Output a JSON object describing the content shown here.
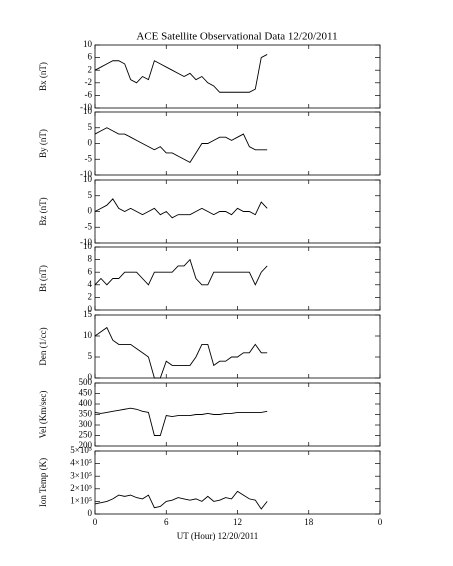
{
  "chart_data": [
    {
      "type": "line",
      "title": "ACE Satellite Observational Data   12/20/2011",
      "ylabel": "Bx (nT)",
      "x": [
        0,
        0.5,
        1,
        1.5,
        2,
        2.5,
        3,
        3.5,
        4,
        4.5,
        5,
        5.5,
        6,
        6.5,
        7,
        7.5,
        8,
        8.5,
        9,
        9.5,
        10,
        10.5,
        11,
        11.5,
        12,
        12.5,
        13,
        13.5,
        14,
        14.5
      ],
      "series": [
        {
          "color": "#000000",
          "values": [
            2,
            3,
            4,
            5,
            5,
            4,
            -1,
            -2,
            0,
            -1,
            5,
            4,
            3,
            2,
            1,
            0,
            1,
            -1,
            0,
            -2,
            -3,
            -5,
            -5,
            -5,
            -5,
            -5,
            -5,
            -4,
            6,
            7
          ]
        }
      ],
      "ylim": [
        -10,
        10
      ],
      "yticks": [
        -10,
        -6,
        -2,
        2,
        6,
        10
      ]
    },
    {
      "type": "line",
      "ylabel": "By (nT)",
      "x": [
        0,
        0.5,
        1,
        1.5,
        2,
        2.5,
        3,
        3.5,
        4,
        4.5,
        5,
        5.5,
        6,
        6.5,
        7,
        7.5,
        8,
        8.5,
        9,
        9.5,
        10,
        10.5,
        11,
        11.5,
        12,
        12.5,
        13,
        13.5,
        14,
        14.5
      ],
      "series": [
        {
          "color": "#000000",
          "values": [
            3,
            4,
            5,
            4,
            3,
            3,
            2,
            1,
            0,
            -1,
            -2,
            -1,
            -3,
            -3,
            -4,
            -5,
            -6,
            -3,
            0,
            0,
            1,
            2,
            2,
            1,
            2,
            3,
            -1,
            -2,
            -2,
            -2
          ]
        }
      ],
      "ylim": [
        -10,
        10
      ],
      "yticks": [
        -10,
        -5,
        0,
        5,
        10
      ]
    },
    {
      "type": "line",
      "ylabel": "Bz (nT)",
      "x": [
        0,
        0.5,
        1,
        1.5,
        2,
        2.5,
        3,
        3.5,
        4,
        4.5,
        5,
        5.5,
        6,
        6.5,
        7,
        7.5,
        8,
        8.5,
        9,
        9.5,
        10,
        10.5,
        11,
        11.5,
        12,
        12.5,
        13,
        13.5,
        14,
        14.5
      ],
      "series": [
        {
          "color": "#000000",
          "values": [
            0,
            1,
            2,
            4,
            1,
            0,
            1,
            0,
            -1,
            0,
            1,
            -1,
            0,
            -2,
            -1,
            -1,
            -1,
            0,
            1,
            0,
            -1,
            0,
            0,
            -1,
            1,
            0,
            0,
            -1,
            3,
            1
          ]
        }
      ],
      "ylim": [
        -10,
        10
      ],
      "yticks": [
        -10,
        -5,
        0,
        5,
        10
      ]
    },
    {
      "type": "line",
      "ylabel": "Bt (nT)",
      "x": [
        0,
        0.5,
        1,
        1.5,
        2,
        2.5,
        3,
        3.5,
        4,
        4.5,
        5,
        5.5,
        6,
        6.5,
        7,
        7.5,
        8,
        8.5,
        9,
        9.5,
        10,
        10.5,
        11,
        11.5,
        12,
        12.5,
        13,
        13.5,
        14,
        14.5
      ],
      "series": [
        {
          "color": "#000000",
          "values": [
            4,
            5,
            4,
            5,
            5,
            6,
            6,
            6,
            5,
            4,
            6,
            6,
            6,
            6,
            7,
            7,
            8,
            5,
            4,
            4,
            6,
            6,
            6,
            6,
            6,
            6,
            6,
            4,
            6,
            7
          ]
        }
      ],
      "ylim": [
        0,
        10
      ],
      "yticks": [
        0,
        2,
        4,
        6,
        8,
        10
      ]
    },
    {
      "type": "line",
      "ylabel": "Den (1/cc)",
      "x": [
        0,
        0.5,
        1,
        1.5,
        2,
        2.5,
        3,
        3.5,
        4,
        4.5,
        5,
        5.5,
        6,
        6.5,
        7,
        7.5,
        8,
        8.5,
        9,
        9.5,
        10,
        10.5,
        11,
        11.5,
        12,
        12.5,
        13,
        13.5,
        14,
        14.5
      ],
      "series": [
        {
          "color": "#000000",
          "values": [
            10,
            11,
            12,
            9,
            8,
            8,
            8,
            7,
            6,
            5,
            0,
            0,
            4,
            3,
            3,
            3,
            3,
            5,
            8,
            8,
            3,
            4,
            4,
            5,
            5,
            6,
            6,
            8,
            6,
            6
          ]
        }
      ],
      "ylim": [
        0,
        15
      ],
      "yticks": [
        0,
        5,
        10,
        15
      ]
    },
    {
      "type": "line",
      "ylabel": "Vel (Km/sec)",
      "x": [
        0,
        0.5,
        1,
        1.5,
        2,
        2.5,
        3,
        3.5,
        4,
        4.5,
        5,
        5.5,
        6,
        6.5,
        7,
        7.5,
        8,
        8.5,
        9,
        9.5,
        10,
        10.5,
        11,
        11.5,
        12,
        12.5,
        13,
        13.5,
        14,
        14.5
      ],
      "series": [
        {
          "color": "#000000",
          "values": [
            360,
            355,
            360,
            365,
            370,
            375,
            380,
            375,
            365,
            360,
            250,
            250,
            345,
            340,
            345,
            345,
            345,
            350,
            350,
            355,
            350,
            350,
            355,
            355,
            360,
            360,
            360,
            360,
            360,
            365
          ]
        }
      ],
      "ylim": [
        200,
        500
      ],
      "yticks": [
        200,
        250,
        300,
        350,
        400,
        450,
        500
      ]
    },
    {
      "type": "line",
      "ylabel": "Ion Temp (K)",
      "xlabel": "UT (Hour)   12/20/2011",
      "x": [
        0,
        0.5,
        1,
        1.5,
        2,
        2.5,
        3,
        3.5,
        4,
        4.5,
        5,
        5.5,
        6,
        6.5,
        7,
        7.5,
        8,
        8.5,
        9,
        9.5,
        10,
        10.5,
        11,
        11.5,
        12,
        12.5,
        13,
        13.5,
        14,
        14.5
      ],
      "series": [
        {
          "color": "#000000",
          "values": [
            80000,
            90000,
            100000,
            120000,
            150000,
            140000,
            150000,
            130000,
            120000,
            150000,
            50000,
            60000,
            100000,
            110000,
            130000,
            120000,
            110000,
            120000,
            100000,
            140000,
            100000,
            110000,
            130000,
            120000,
            180000,
            150000,
            120000,
            110000,
            40000,
            100000
          ]
        }
      ],
      "ylim": [
        0,
        500000
      ],
      "yticks": [
        0,
        {
          "value": 100000,
          "label": "1×10⁵"
        },
        {
          "value": 200000,
          "label": "2×10⁵"
        },
        {
          "value": 300000,
          "label": "3×10⁵"
        },
        {
          "value": 400000,
          "label": "4×10⁵"
        },
        {
          "value": 500000,
          "label": "5×10⁵"
        }
      ],
      "xlim": [
        0,
        24
      ],
      "xticks": [
        0,
        6,
        12,
        18,
        {
          "value": 24,
          "label": "0"
        }
      ]
    }
  ]
}
